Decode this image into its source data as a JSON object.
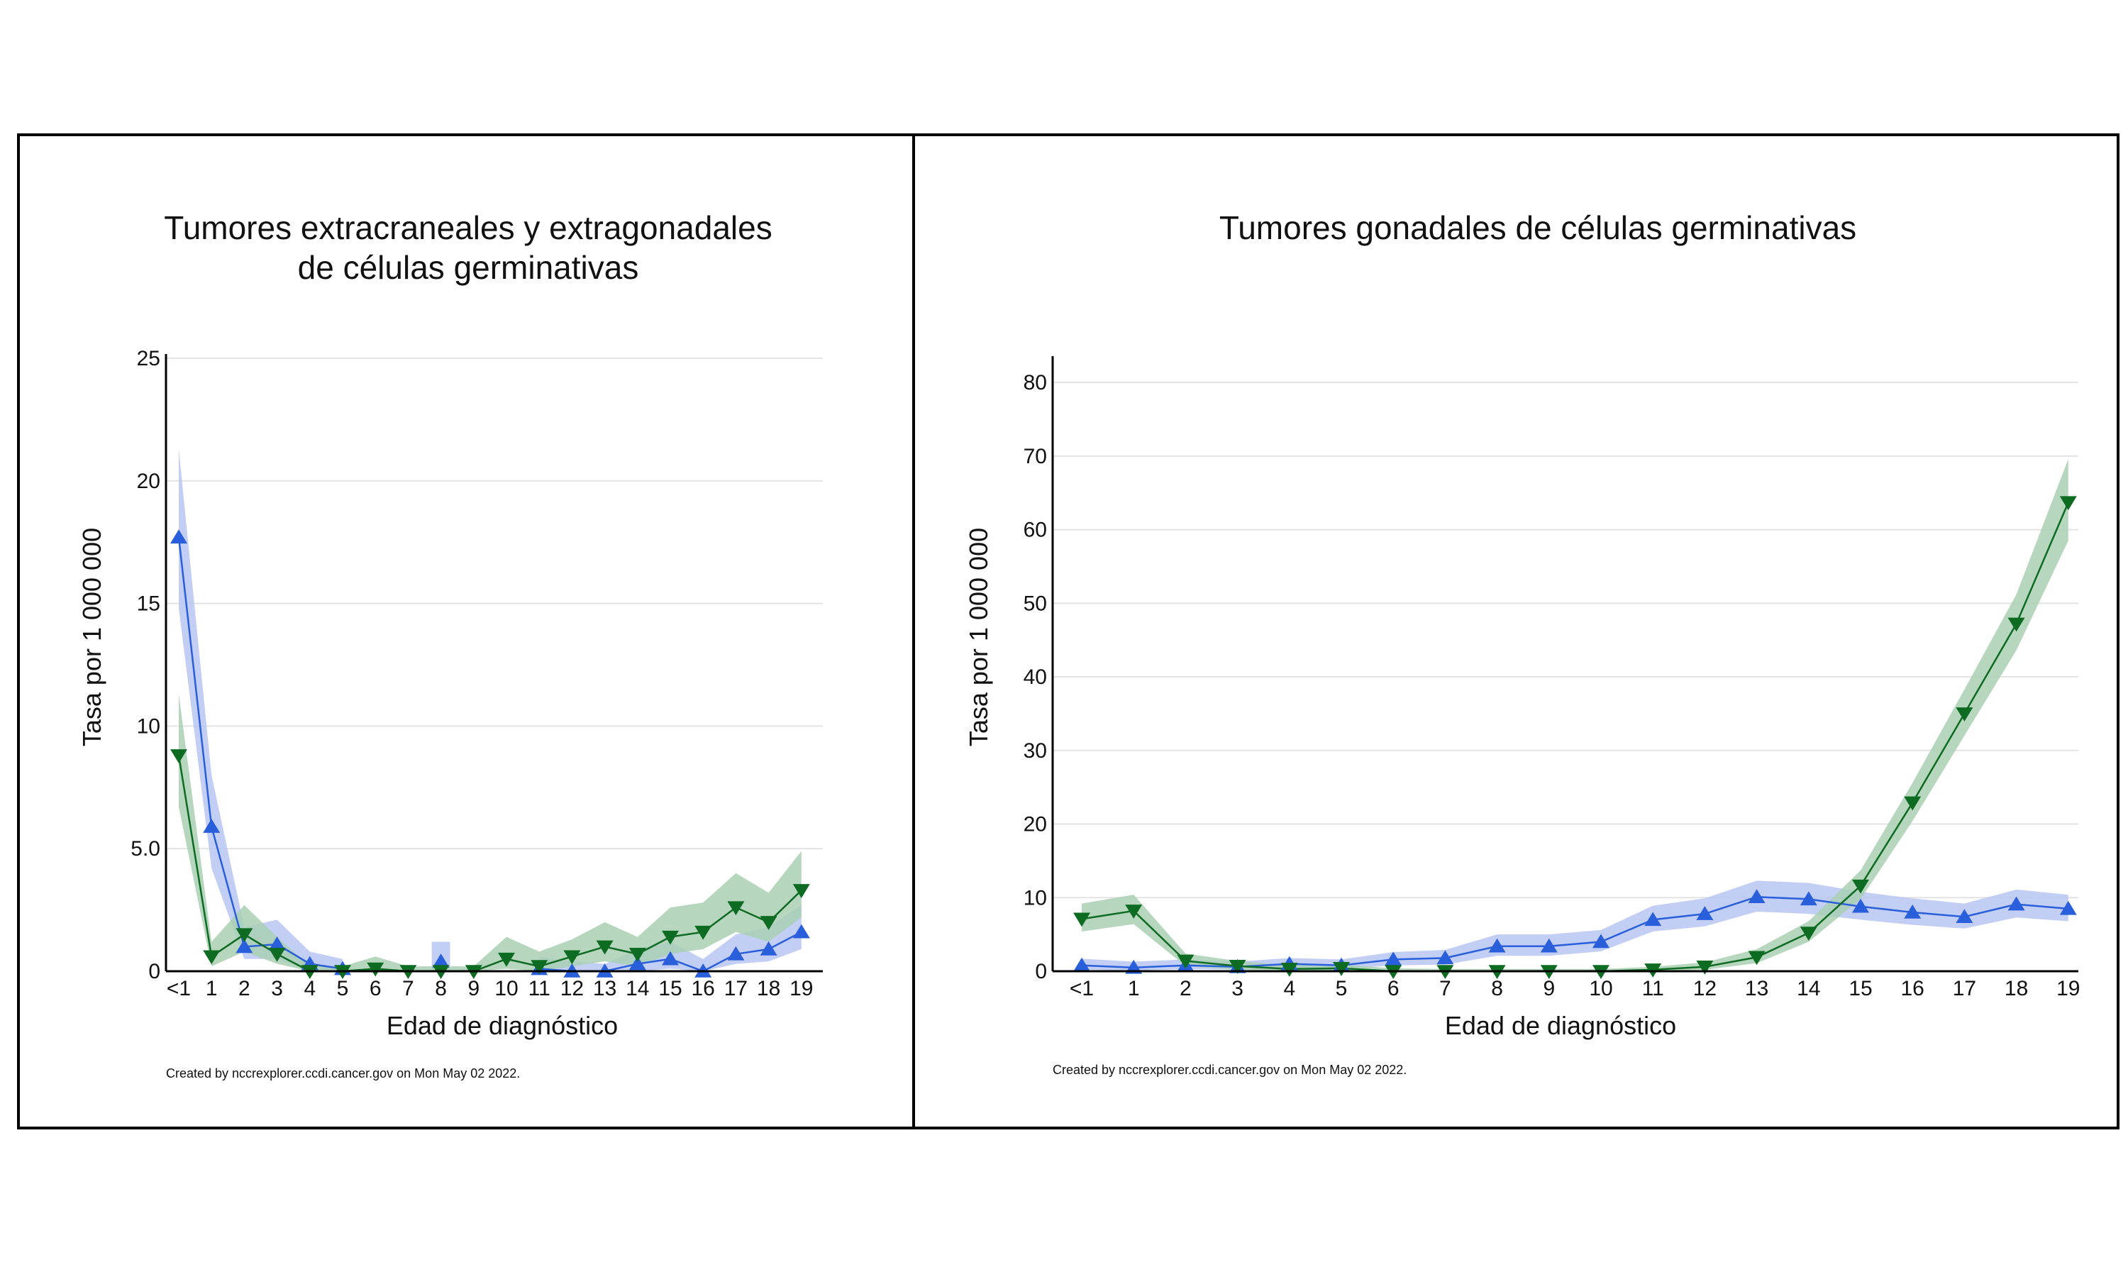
{
  "chart_data": [
    {
      "type": "line",
      "title": "Tumores extracraneales y extragonadales de células germinativas",
      "title_lines": [
        "Tumores extracraneales y extragonadales",
        "de células germinativas"
      ],
      "xlabel": "Edad de diagnóstico",
      "ylabel": "Tasa por 1 000 000",
      "categories": [
        "<1",
        "1",
        "2",
        "3",
        "4",
        "5",
        "6",
        "7",
        "8",
        "9",
        "10",
        "11",
        "12",
        "13",
        "14",
        "15",
        "16",
        "17",
        "18",
        "19"
      ],
      "ylim": [
        0,
        25
      ],
      "yticks": [
        0,
        5,
        10,
        15,
        20,
        25
      ],
      "ytick_labels": [
        "0",
        "5.0",
        "10",
        "15",
        "20",
        "25"
      ],
      "grid": true,
      "credit": "Created by nccrexplorer.ccdi.cancer.gov on Mon May 02 2022.",
      "series": [
        {
          "color": "#2a5fdb",
          "band_color": "#b7c6f2",
          "marker": "triangle-up",
          "values": [
            17.7,
            5.9,
            1.0,
            1.1,
            0.3,
            0.1,
            null,
            null,
            0.4,
            null,
            null,
            0.1,
            0.0,
            0.0,
            0.3,
            0.5,
            0.0,
            0.7,
            0.9,
            1.6
          ],
          "lower": [
            14.8,
            4.2,
            0.5,
            0.5,
            0.0,
            0.0,
            null,
            null,
            0.0,
            null,
            null,
            0.0,
            0.0,
            0.0,
            0.0,
            0.1,
            0.0,
            0.3,
            0.4,
            0.9
          ],
          "upper": [
            21.3,
            8.0,
            1.8,
            2.1,
            0.8,
            0.5,
            null,
            null,
            1.2,
            null,
            null,
            0.6,
            0.4,
            0.3,
            0.9,
            1.2,
            0.5,
            1.5,
            1.8,
            2.7
          ]
        },
        {
          "color": "#0e6b22",
          "band_color": "#a9cfb3",
          "marker": "triangle-down",
          "values": [
            8.8,
            0.6,
            1.5,
            0.7,
            0.0,
            0.0,
            0.1,
            0.0,
            0.0,
            0.0,
            0.5,
            0.2,
            0.6,
            1.0,
            0.7,
            1.4,
            1.6,
            2.6,
            2.0,
            3.3
          ],
          "lower": [
            6.7,
            0.2,
            0.8,
            0.3,
            0.0,
            0.0,
            0.0,
            0.0,
            0.0,
            0.0,
            0.1,
            0.0,
            0.2,
            0.4,
            0.2,
            0.7,
            0.9,
            1.6,
            1.2,
            2.2
          ],
          "upper": [
            11.3,
            1.2,
            2.7,
            1.4,
            0.2,
            0.2,
            0.6,
            0.2,
            0.2,
            0.2,
            1.4,
            0.8,
            1.3,
            2.0,
            1.4,
            2.6,
            2.8,
            4.0,
            3.2,
            4.9
          ]
        }
      ]
    },
    {
      "type": "line",
      "title": "Tumores gonadales de células germinativas",
      "title_lines": [
        "Tumores gonadales de células germinativas"
      ],
      "xlabel": "Edad de diagnóstico",
      "ylabel": "Tasa por 1 000 000",
      "categories": [
        "<1",
        "1",
        "2",
        "3",
        "4",
        "5",
        "6",
        "7",
        "8",
        "9",
        "10",
        "11",
        "12",
        "13",
        "14",
        "15",
        "16",
        "17",
        "18",
        "19"
      ],
      "ylim": [
        0,
        83
      ],
      "yticks": [
        0,
        10,
        20,
        30,
        40,
        50,
        60,
        70,
        80
      ],
      "ytick_labels": [
        "0",
        "10",
        "20",
        "30",
        "40",
        "50",
        "60",
        "70",
        "80"
      ],
      "grid": true,
      "credit": "Created by nccrexplorer.ccdi.cancer.gov on Mon May 02 2022.",
      "series": [
        {
          "color": "#2a5fdb",
          "band_color": "#b7c6f2",
          "marker": "triangle-up",
          "values": [
            0.8,
            0.5,
            0.8,
            0.6,
            1.0,
            0.8,
            1.6,
            1.8,
            3.4,
            3.4,
            4.0,
            7.0,
            7.8,
            10.1,
            9.8,
            8.8,
            8.0,
            7.4,
            9.1,
            8.5
          ],
          "lower": [
            0.2,
            0.1,
            0.3,
            0.2,
            0.4,
            0.3,
            0.8,
            0.9,
            2.1,
            2.1,
            2.7,
            5.4,
            6.1,
            8.1,
            7.8,
            7.0,
            6.3,
            5.8,
            7.3,
            6.8
          ],
          "upper": [
            1.7,
            1.3,
            1.6,
            1.3,
            1.8,
            1.6,
            2.6,
            2.9,
            5.0,
            5.0,
            5.6,
            8.9,
            9.9,
            12.3,
            12.0,
            10.8,
            9.9,
            9.2,
            11.1,
            10.4
          ]
        },
        {
          "color": "#0e6b22",
          "band_color": "#a9cfb3",
          "marker": "triangle-down",
          "values": [
            7.1,
            8.2,
            1.4,
            0.7,
            0.3,
            0.4,
            0.0,
            0.0,
            0.0,
            0.0,
            0.0,
            0.2,
            0.6,
            1.9,
            5.2,
            11.6,
            22.9,
            35.0,
            47.2,
            63.7
          ],
          "lower": [
            5.4,
            6.4,
            0.7,
            0.2,
            0.0,
            0.0,
            0.0,
            0.0,
            0.0,
            0.0,
            0.0,
            0.0,
            0.2,
            1.1,
            4.0,
            9.8,
            20.4,
            32.0,
            43.6,
            58.5
          ],
          "upper": [
            9.2,
            10.4,
            2.4,
            1.4,
            0.8,
            0.9,
            0.4,
            0.3,
            0.3,
            0.3,
            0.3,
            0.6,
            1.2,
            3.0,
            6.8,
            13.7,
            25.6,
            38.3,
            51.2,
            69.6
          ]
        }
      ]
    }
  ]
}
